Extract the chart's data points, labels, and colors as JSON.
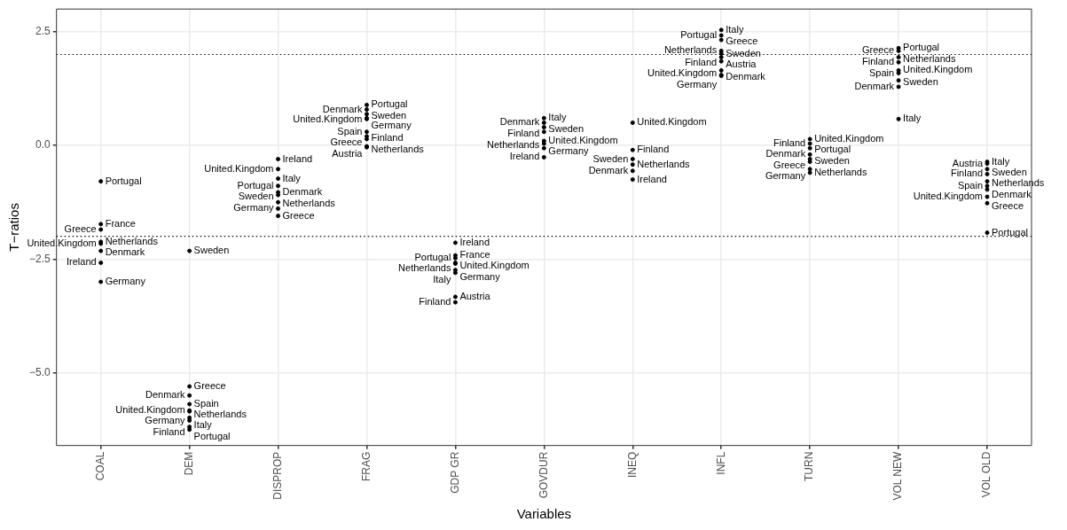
{
  "chart_data": {
    "type": "scatter",
    "xlabel": "Variables",
    "ylabel": "T−ratios",
    "categories": [
      "COAL",
      "DEM",
      "DISPROP",
      "FRAG",
      "GDP GR",
      "GOVDUR",
      "INEQ",
      "INFL",
      "TURN",
      "VOL NEW",
      "VOL OLD"
    ],
    "series": [
      {
        "color": "#000000",
        "x": [
          "COAL",
          "COAL",
          "COAL",
          "COAL",
          "COAL",
          "COAL",
          "COAL",
          "COAL",
          "DEM",
          "DEM",
          "DEM",
          "DEM",
          "DEM",
          "DEM",
          "DEM",
          "DEM",
          "DEM",
          "DEM",
          "DISPROP",
          "DISPROP",
          "DISPROP",
          "DISPROP",
          "DISPROP",
          "DISPROP",
          "DISPROP",
          "DISPROP",
          "DISPROP",
          "FRAG",
          "FRAG",
          "FRAG",
          "FRAG",
          "FRAG",
          "FRAG",
          "FRAG",
          "FRAG",
          "FRAG",
          "FRAG",
          "GDP GR",
          "GDP GR",
          "GDP GR",
          "GDP GR",
          "GDP GR",
          "GDP GR",
          "GDP GR",
          "GDP GR",
          "GDP GR",
          "GOVDUR",
          "GOVDUR",
          "GOVDUR",
          "GOVDUR",
          "GOVDUR",
          "GOVDUR",
          "GOVDUR",
          "GOVDUR",
          "INEQ",
          "INEQ",
          "INEQ",
          "INEQ",
          "INEQ",
          "INEQ",
          "INFL",
          "INFL",
          "INFL",
          "INFL",
          "INFL",
          "INFL",
          "INFL",
          "INFL",
          "INFL",
          "INFL",
          "TURN",
          "TURN",
          "TURN",
          "TURN",
          "TURN",
          "TURN",
          "TURN",
          "TURN",
          "VOL NEW",
          "VOL NEW",
          "VOL NEW",
          "VOL NEW",
          "VOL NEW",
          "VOL NEW",
          "VOL NEW",
          "VOL NEW",
          "VOL NEW",
          "VOL OLD",
          "VOL OLD",
          "VOL OLD",
          "VOL OLD",
          "VOL OLD",
          "VOL OLD",
          "VOL OLD",
          "VOL OLD",
          "VOL OLD",
          "VOL OLD"
        ],
        "values": [
          -0.79,
          -1.73,
          -1.85,
          -2.12,
          -2.16,
          -2.32,
          -2.58,
          -3.0,
          -2.32,
          -5.3,
          -5.5,
          -5.69,
          -5.83,
          -5.85,
          -5.99,
          -6.05,
          -6.19,
          -6.25,
          -0.3,
          -0.52,
          -0.73,
          -0.89,
          -1.03,
          -1.09,
          -1.25,
          -1.39,
          -1.55,
          0.89,
          0.79,
          0.69,
          0.6,
          0.58,
          0.3,
          0.2,
          0.14,
          -0.02,
          -0.04,
          -2.14,
          -2.42,
          -2.48,
          -2.58,
          -2.6,
          -2.74,
          -2.8,
          -3.33,
          -3.45,
          0.6,
          0.5,
          0.4,
          0.3,
          0.1,
          0.04,
          -0.06,
          -0.26,
          0.5,
          -0.1,
          -0.3,
          -0.42,
          -0.56,
          -0.75,
          2.54,
          2.42,
          2.32,
          2.08,
          2.02,
          1.94,
          1.85,
          1.65,
          1.55,
          1.53,
          0.14,
          0.04,
          -0.06,
          -0.2,
          -0.3,
          -0.36,
          -0.52,
          -0.6,
          2.14,
          2.08,
          1.94,
          1.83,
          1.65,
          1.59,
          1.43,
          1.29,
          0.58,
          -0.36,
          -0.4,
          -0.52,
          -0.63,
          -0.79,
          -0.89,
          -0.97,
          -1.13,
          -1.27,
          -1.92
        ],
        "value_labels": [
          "Portugal",
          "France",
          "Greece",
          "Netherlands",
          "United.Kingdom",
          "Denmark",
          "Ireland",
          "Germany",
          "Sweden",
          "Greece",
          "Denmark",
          "Spain",
          "United.Kingdom",
          "Netherlands",
          "Germany",
          "Italy",
          "Finland",
          "Portugal",
          "Ireland",
          "United.Kingdom",
          "Italy",
          "Portugal",
          "Denmark",
          "Sweden",
          "Netherlands",
          "Germany",
          "Greece",
          "Portugal",
          "Denmark",
          "Sweden",
          "United.Kingdom",
          "Germany",
          "Spain",
          "Finland",
          "Greece",
          "Netherlands",
          "Austria",
          "Ireland",
          "France",
          "Portugal",
          "United.Kingdom",
          "Netherlands",
          "Germany",
          "Italy",
          "Austria",
          "Finland",
          "Italy",
          "Denmark",
          "Sweden",
          "Finland",
          "United.Kingdom",
          "Netherlands",
          "Germany",
          "Ireland",
          "United.Kingdom",
          "Finland",
          "Sweden",
          "Netherlands",
          "Denmark",
          "Ireland",
          "Italy",
          "Portugal",
          "Greece",
          "Netherlands",
          "Sweden",
          "Finland",
          "Austria",
          "United.Kingdom",
          "Denmark",
          "Germany",
          "United.Kingdom",
          "Finland",
          "Portugal",
          "Denmark",
          "Sweden",
          "Greece",
          "Netherlands",
          "Germany",
          "Portugal",
          "Greece",
          "Netherlands",
          "Finland",
          "United.Kingdom",
          "Spain",
          "Sweden",
          "Denmark",
          "Italy",
          "Italy",
          "Austria",
          "Sweden",
          "Finland",
          "Netherlands",
          "Spain",
          "Denmark",
          "United.Kingdom",
          "Greece",
          "Portugal"
        ]
      }
    ],
    "ylim": [
      -6.6,
      3.0
    ],
    "yticks": [
      {
        "value": -5,
        "label": "−5.0"
      },
      {
        "value": -2.5,
        "label": "−2.5"
      },
      {
        "value": 0,
        "label": "0.0"
      },
      {
        "value": 2.5,
        "label": "2.5"
      }
    ],
    "grid": true,
    "marker": "circle",
    "ref_lines": [
      {
        "axis": "y",
        "value": 2,
        "line_style": "dotted",
        "color": "#000000"
      },
      {
        "axis": "y",
        "value": -2,
        "line_style": "dotted",
        "color": "#000000"
      }
    ]
  }
}
